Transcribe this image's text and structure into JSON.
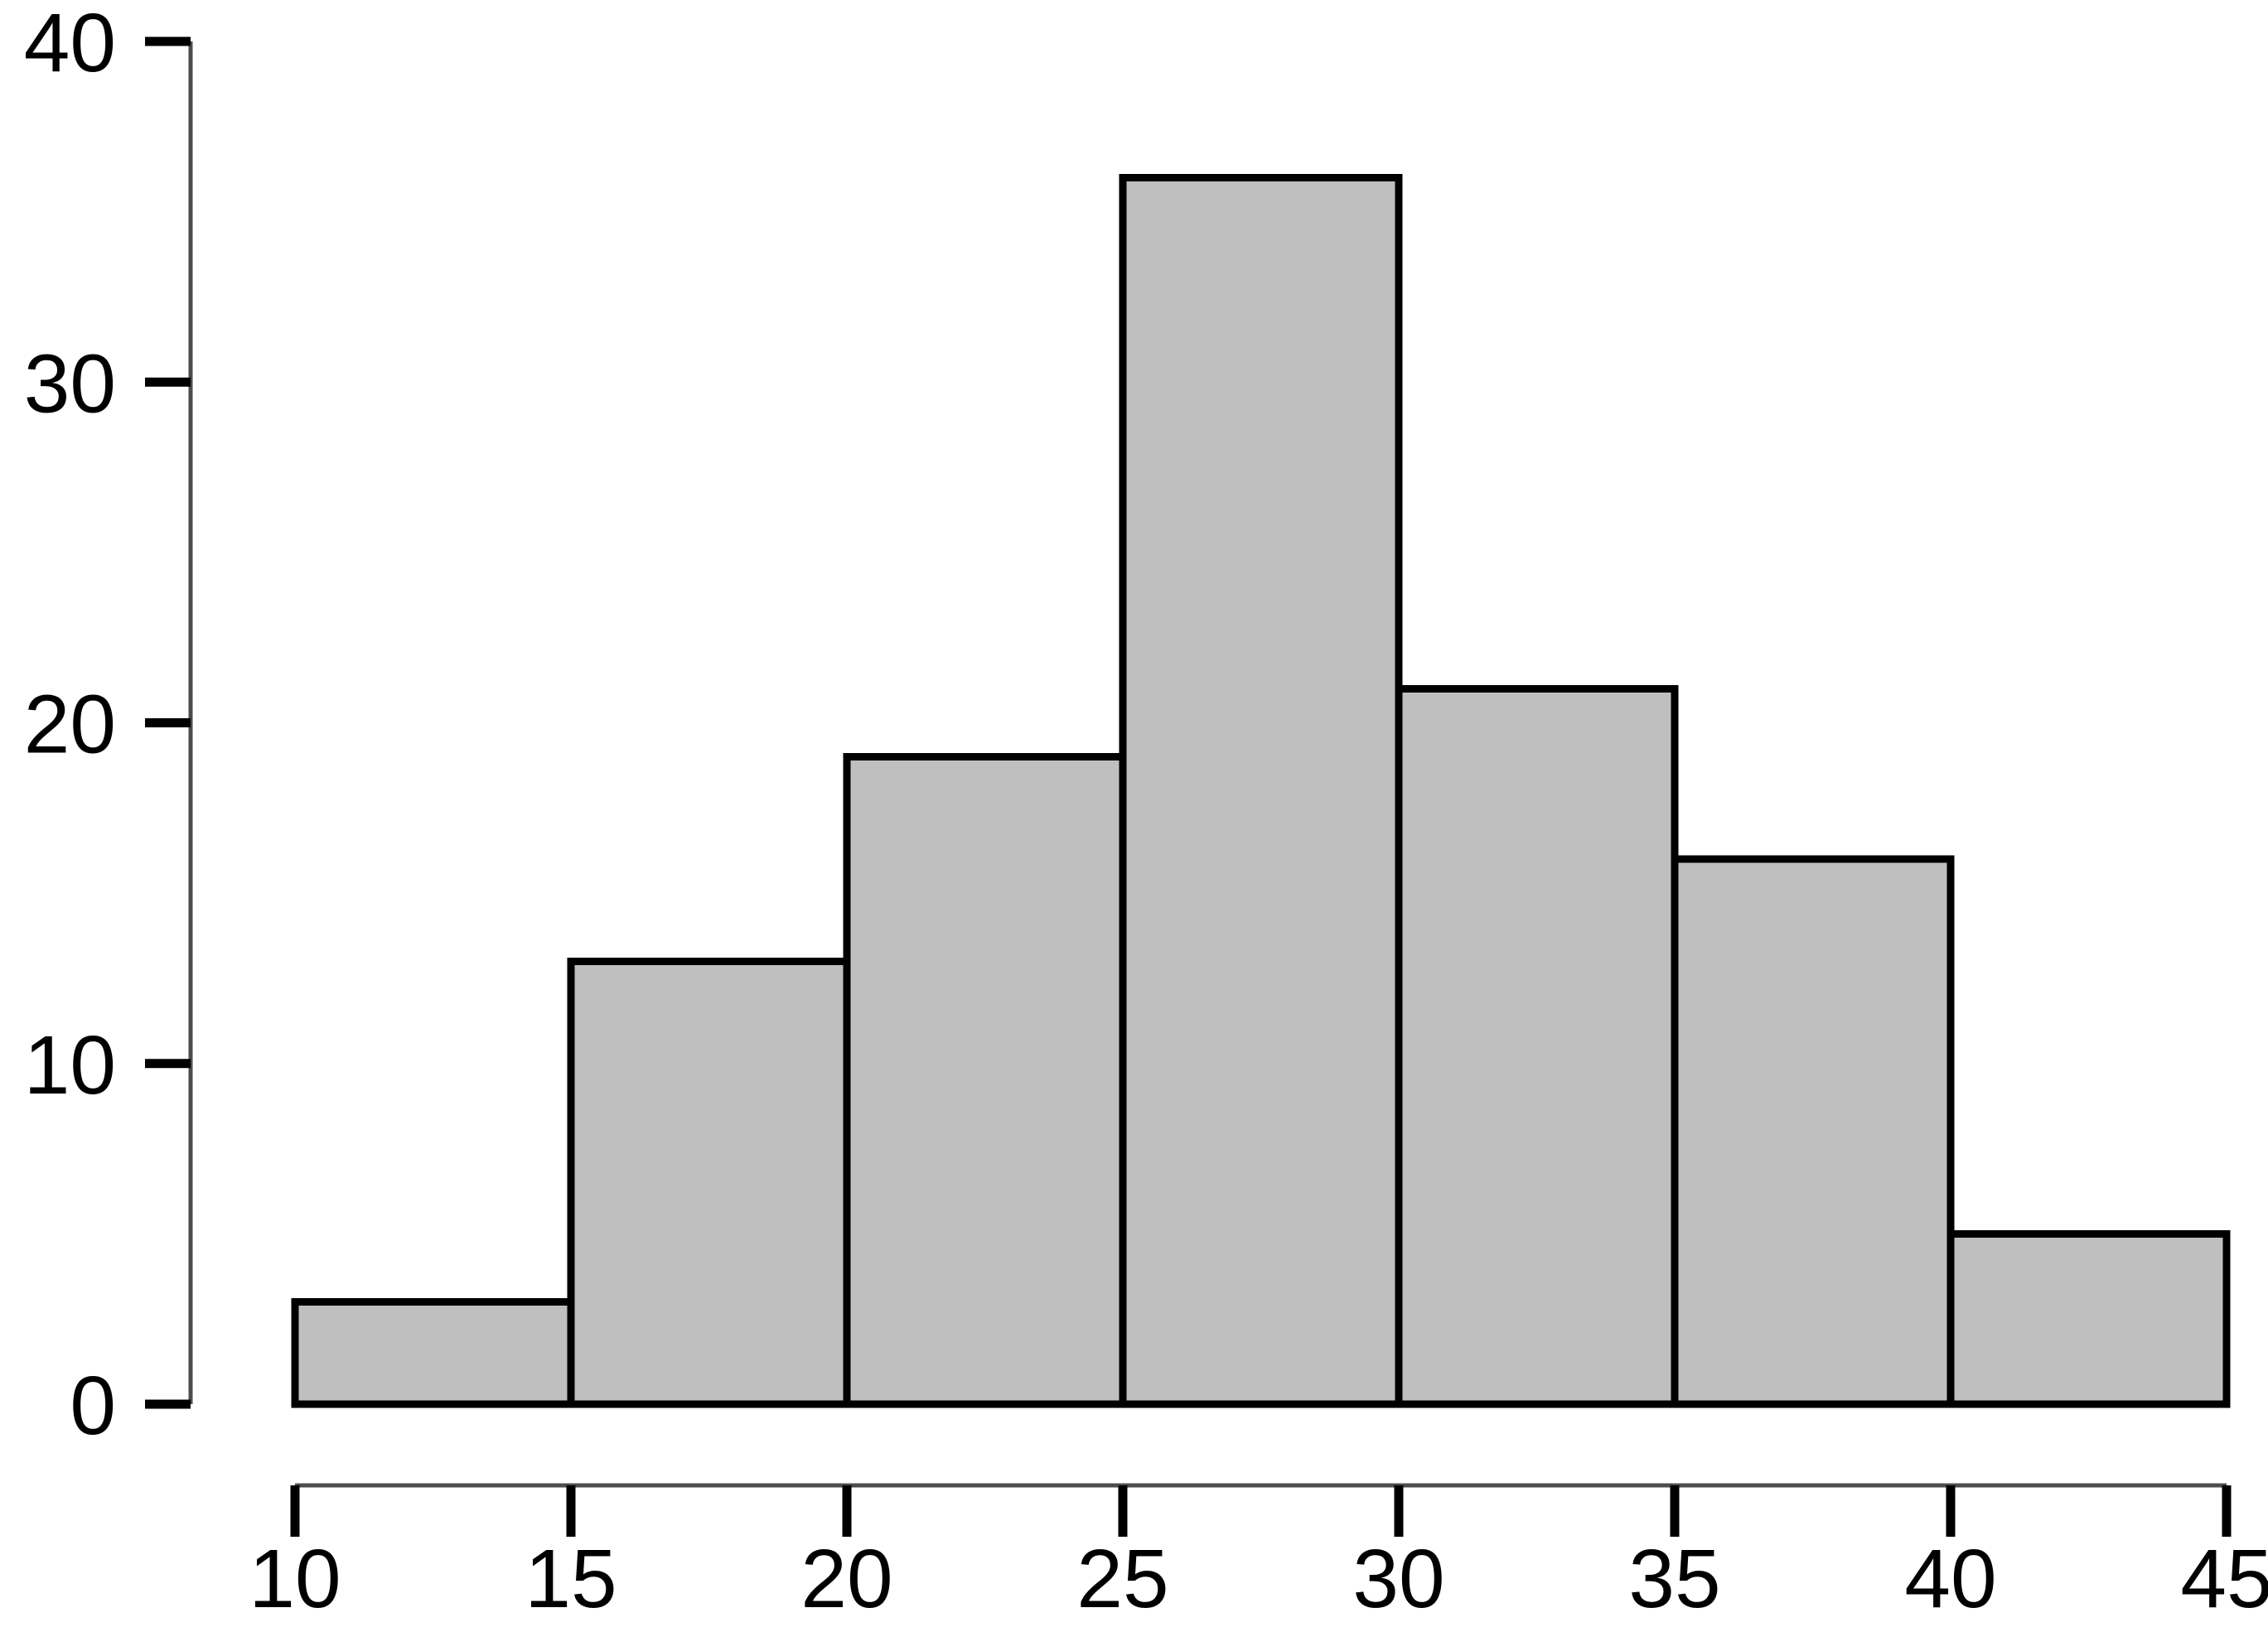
{
  "chart_data": {
    "type": "bar",
    "subtype": "histogram",
    "title": "",
    "xlabel": "",
    "ylabel": "",
    "bin_edges": [
      10,
      15,
      20,
      25,
      30,
      35,
      40,
      45
    ],
    "categories": [
      "10-15",
      "15-20",
      "20-25",
      "25-30",
      "30-35",
      "35-40",
      "40-45"
    ],
    "values": [
      3,
      13,
      19,
      36,
      21,
      16,
      5
    ],
    "xlim": [
      10,
      45
    ],
    "ylim": [
      0,
      40
    ],
    "x_tick_labels": [
      "10",
      "15",
      "20",
      "25",
      "30",
      "35",
      "40",
      "45"
    ],
    "x_tick_values": [
      10,
      15,
      20,
      25,
      30,
      35,
      40,
      45
    ],
    "y_tick_labels": [
      "0",
      "10",
      "20",
      "30",
      "40"
    ],
    "y_tick_values": [
      0,
      10,
      20,
      30,
      40
    ],
    "grid": "off",
    "legend": "none",
    "colors": {
      "bar_fill": "#BFBFBF",
      "bar_stroke": "#000000",
      "axis_line": "#4d4d4d",
      "tick_mark": "#000000",
      "label_text": "#000000",
      "background": "#ffffff"
    }
  }
}
